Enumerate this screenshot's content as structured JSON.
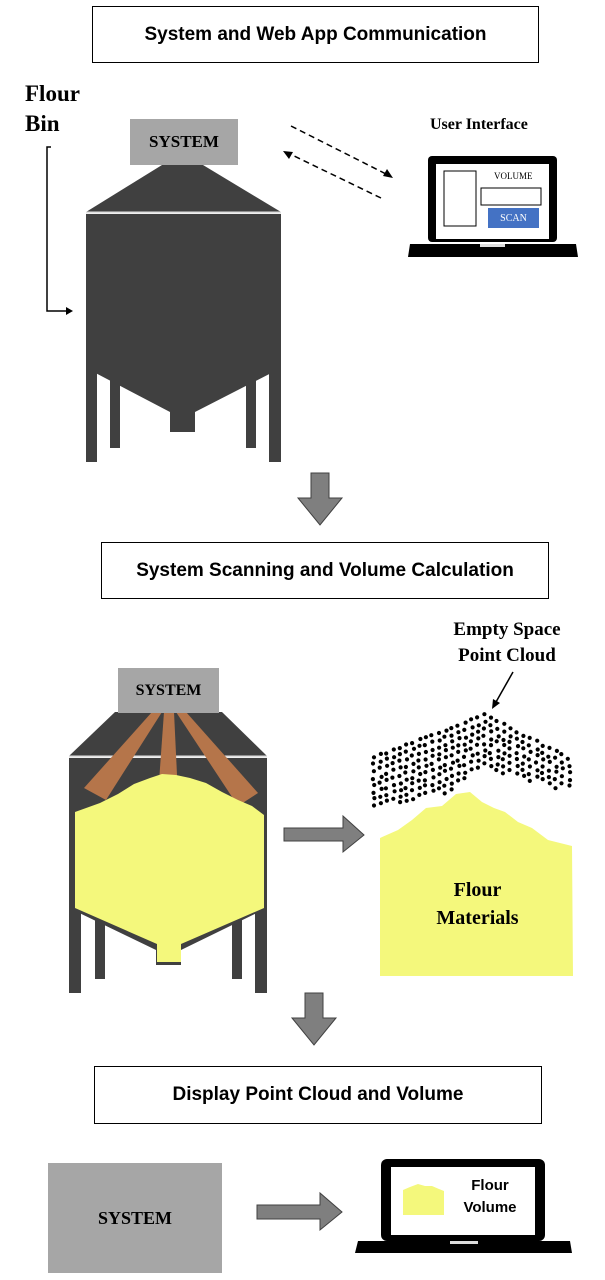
{
  "sections": {
    "communication_title": "System and Web App Communication",
    "scanning_title": "System Scanning and Volume Calculation",
    "display_title": "Display Point Cloud and Volume"
  },
  "labels": {
    "flour_bin": "Flour\nBin",
    "user_interface": "User Interface",
    "empty_space": "Empty Space\nPoint Cloud",
    "flour_materials": "Flour\nMaterials",
    "flour_volume": "Flour\nVolume"
  },
  "system": {
    "label_1": "SYSTEM",
    "label_2": "SYSTEM",
    "label_3": "SYSTEM"
  },
  "ui_screen": {
    "volume_label": "VOLUME",
    "scan_button": "SCAN"
  },
  "colors": {
    "bin": "#404040",
    "system": "#a6a6a6",
    "flour": "#f4f87c",
    "laser": "#b5754a",
    "arrow": "#7f7f7f",
    "scan_button": "#4472c4"
  }
}
